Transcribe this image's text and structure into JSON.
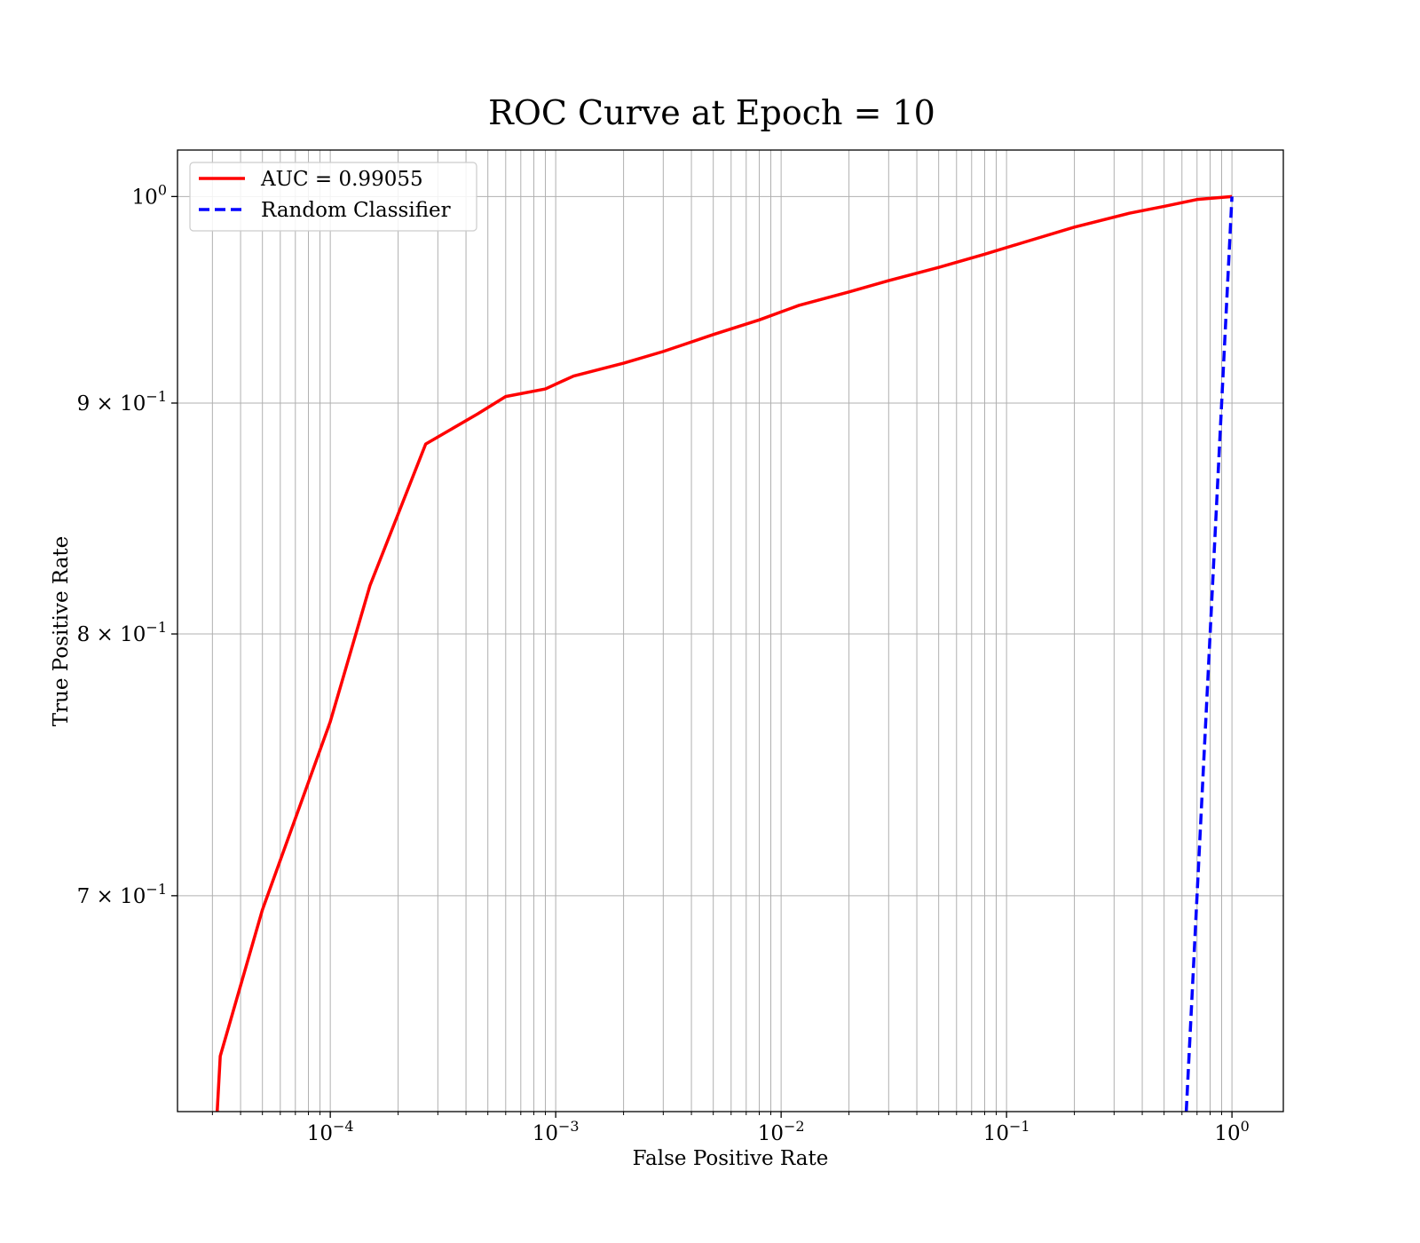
{
  "chart_data": {
    "type": "line",
    "title": "ROC Curve at Epoch = 10",
    "xlabel": "False Positive Rate",
    "ylabel": "True Positive Rate",
    "xscale": "log",
    "yscale": "log",
    "xlim": [
      2.1e-05,
      1.69
    ],
    "ylim": [
      0.627,
      1.024
    ],
    "grid": "both",
    "legend_position": "top-left",
    "x_ticks": [
      {
        "value": 0.0001,
        "mantissa": "10",
        "exp": "−4"
      },
      {
        "value": 0.001,
        "mantissa": "10",
        "exp": "−3"
      },
      {
        "value": 0.01,
        "mantissa": "10",
        "exp": "−2"
      },
      {
        "value": 0.1,
        "mantissa": "10",
        "exp": "−1"
      },
      {
        "value": 1,
        "mantissa": "10",
        "exp": "0"
      }
    ],
    "y_ticks": [
      {
        "value": 1.0,
        "mantissa": "10",
        "exp": "0"
      },
      {
        "value": 0.9,
        "mantissa": "9 × 10",
        "exp": "−1"
      },
      {
        "value": 0.8,
        "mantissa": "8 × 10",
        "exp": "−1"
      },
      {
        "value": 0.7,
        "mantissa": "7 × 10",
        "exp": "−1"
      }
    ],
    "series": [
      {
        "name": "AUC = 0.99055",
        "color": "#ff0000",
        "style": "solid",
        "x": [
          3.15e-05,
          3.25e-05,
          5e-05,
          0.0001,
          0.00015,
          0.000265,
          0.00045,
          0.0006,
          0.0009,
          0.0012,
          0.002,
          0.003,
          0.005,
          0.008,
          0.012,
          0.02,
          0.03,
          0.05,
          0.08,
          0.12,
          0.2,
          0.35,
          0.5,
          0.7,
          1.0
        ],
        "y": [
          0.627,
          0.645,
          0.695,
          0.765,
          0.82,
          0.8814,
          0.895,
          0.903,
          0.9065,
          0.9125,
          0.9185,
          0.924,
          0.932,
          0.939,
          0.946,
          0.9525,
          0.958,
          0.9645,
          0.971,
          0.977,
          0.9845,
          0.9915,
          0.995,
          0.9985,
          1.0
        ]
      },
      {
        "name": "Random Classifier",
        "color": "#0000ff",
        "style": "dashed",
        "x": [
          0.627,
          1.0
        ],
        "y": [
          0.627,
          1.0
        ]
      }
    ]
  }
}
